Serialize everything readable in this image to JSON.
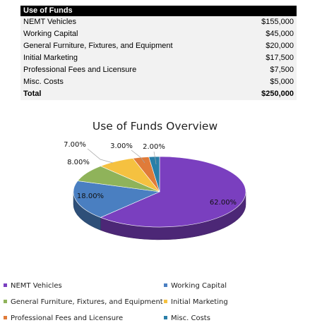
{
  "table": {
    "header": "Use of Funds",
    "rows": [
      {
        "label": "NEMT Vehicles",
        "amount": "$155,000"
      },
      {
        "label": "Working Capital",
        "amount": "$45,000"
      },
      {
        "label": "General Furniture, Fixtures, and Equipment",
        "amount": "$20,000"
      },
      {
        "label": "Initial Marketing",
        "amount": "$17,500"
      },
      {
        "label": "Professional Fees and Licensure",
        "amount": "$7,500"
      },
      {
        "label": "Misc. Costs",
        "amount": "$5,000"
      }
    ],
    "total": {
      "label": "Total",
      "amount": "$250,000"
    }
  },
  "chart_data": {
    "type": "pie",
    "title": "Use of Funds Overview",
    "categories": [
      "NEMT Vehicles",
      "Working Capital",
      "General Furniture, Fixtures, and Equipment",
      "Initial Marketing",
      "Professional Fees and Licensure",
      "Misc. Costs"
    ],
    "values": [
      62.0,
      18.0,
      8.0,
      7.0,
      3.0,
      2.0
    ],
    "labels": [
      "62.00%",
      "18.00%",
      "8.00%",
      "7.00%",
      "3.00%",
      "2.00%"
    ],
    "colors": [
      "#7a3fbf",
      "#4a7fc1",
      "#8fb35a",
      "#f5c140",
      "#e07b39",
      "#2a7fa8"
    ],
    "legend_position": "bottom",
    "style": "3d"
  }
}
